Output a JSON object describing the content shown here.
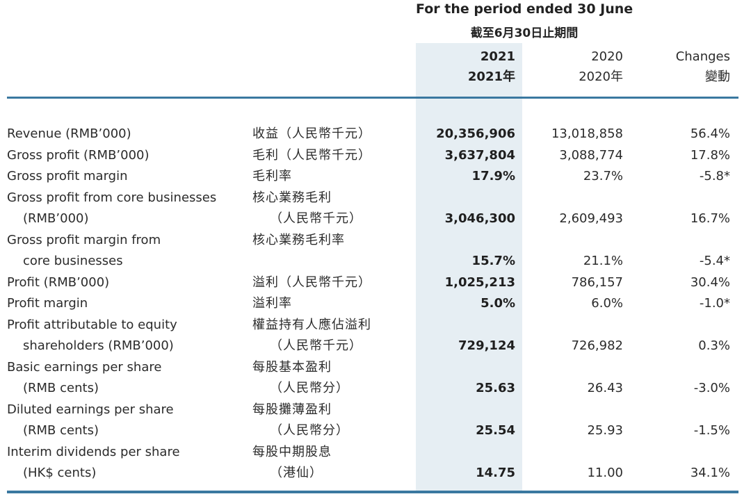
{
  "header": {
    "period_en": "For the period ended 30 June",
    "period_zh": "截至6月30日止期間",
    "col_2021": "2021",
    "col_2021_zh": "2021年",
    "col_2020": "2020",
    "col_2020_zh": "2020年",
    "col_changes": "Changes",
    "col_changes_zh": "變動"
  },
  "rows": [
    {
      "en": "Revenue (RMB’000)",
      "zh": "收益（人民幣千元）",
      "v2021": "20,356,906",
      "v2020": "13,018,858",
      "chg": "56.4%"
    },
    {
      "en": "Gross profit (RMB’000)",
      "zh": "毛利（人民幣千元）",
      "v2021": "3,637,804",
      "v2020": "3,088,774",
      "chg": "17.8%"
    },
    {
      "en": "Gross profit margin",
      "zh": "毛利率",
      "v2021": "17.9%",
      "v2020": "23.7%",
      "chg": "-5.8*"
    },
    {
      "en": "Gross profit from core businesses",
      "zh": "核心業務毛利"
    },
    {
      "en": "(RMB’000)",
      "zh": "（人民幣千元）",
      "v2021": "3,046,300",
      "v2020": "2,609,493",
      "chg": "16.7%"
    },
    {
      "en": "Gross profit margin from",
      "zh": "核心業務毛利率"
    },
    {
      "en": "core businesses",
      "zh": "",
      "v2021": "15.7%",
      "v2020": "21.1%",
      "chg": "-5.4*"
    },
    {
      "en": "Profit (RMB’000)",
      "zh": "溢利（人民幣千元）",
      "v2021": "1,025,213",
      "v2020": "786,157",
      "chg": "30.4%"
    },
    {
      "en": "Profit margin",
      "zh": "溢利率",
      "v2021": "5.0%",
      "v2020": "6.0%",
      "chg": "-1.0*"
    },
    {
      "en": "Profit attributable to equity",
      "zh": "權益持有人應佔溢利"
    },
    {
      "en": "shareholders (RMB’000)",
      "zh": "（人民幣千元）",
      "v2021": "729,124",
      "v2020": "726,982",
      "chg": "0.3%"
    },
    {
      "en": "Basic earnings per share",
      "zh": "每股基本盈利"
    },
    {
      "en": "(RMB cents)",
      "zh": "（人民幣分）",
      "v2021": "25.63",
      "v2020": "26.43",
      "chg": "-3.0%"
    },
    {
      "en": "Diluted earnings per share",
      "zh": "每股攤薄盈利"
    },
    {
      "en": "(RMB cents)",
      "zh": "（人民幣分）",
      "v2021": "25.54",
      "v2020": "25.93",
      "chg": "-1.5%"
    },
    {
      "en": "Interim dividends per share",
      "zh": "每股中期股息"
    },
    {
      "en": "(HK$ cents)",
      "zh": "（港仙）",
      "v2021": "14.75",
      "v2020": "11.00",
      "chg": "34.1%"
    }
  ]
}
